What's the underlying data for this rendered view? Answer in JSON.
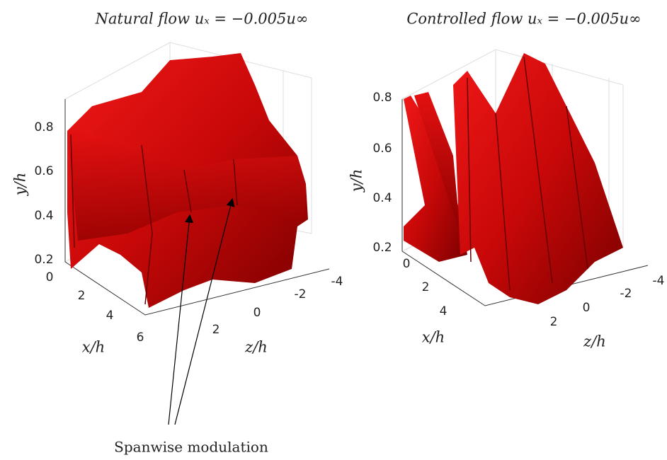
{
  "panels": [
    {
      "title": "Natural flow uₓ = −0.005u∞",
      "y_label": "y/h",
      "x_label": "x/h",
      "z_label": "z/h",
      "y_ticks": [
        0.8,
        0.6,
        0.4,
        0.2
      ],
      "x_ticks": [
        0,
        2,
        4,
        6
      ],
      "z_ticks": [
        2,
        0,
        -2,
        -4
      ]
    },
    {
      "title": "Controlled flow uₓ = −0.005u∞",
      "y_label": "y/h",
      "x_label": "x/h",
      "z_label": "z/h",
      "y_ticks": [
        0.8,
        0.6,
        0.4,
        0.2
      ],
      "x_ticks": [
        0,
        2,
        4
      ],
      "z_ticks": [
        2,
        0,
        -2,
        -4
      ]
    }
  ],
  "annotation": "Spanwise modulation"
}
